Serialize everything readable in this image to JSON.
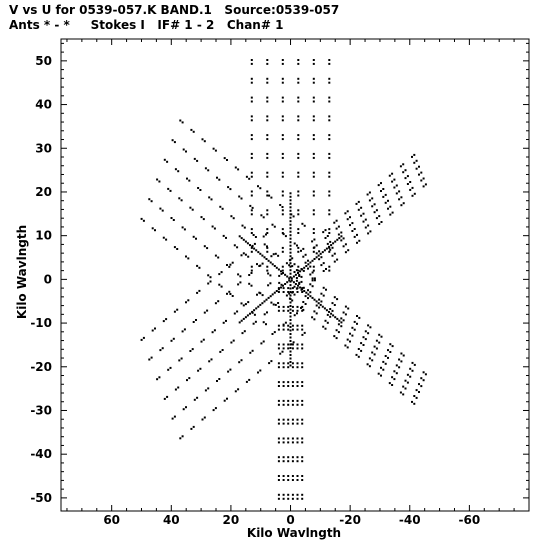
{
  "chart_data": {
    "type": "scatter",
    "title_line1": "V vs U for 0539-057.K BAND.1   Source:0539-057",
    "title_line2": "Ants * - *     Stokes I   IF# 1 - 2   Chan# 1",
    "xlabel": "Kilo Wavlngth",
    "ylabel": "Kilo Wavlngth",
    "xlim": [
      77,
      -80
    ],
    "ylim": [
      -53,
      55
    ],
    "x_reversed": true,
    "xticks": [
      60,
      40,
      20,
      0,
      -20,
      -40,
      -60
    ],
    "yticks": [
      50,
      40,
      30,
      20,
      10,
      0,
      -10,
      -20,
      -30,
      -40,
      -50
    ],
    "grid": false,
    "marker_color": "#000000",
    "pattern": {
      "description_units": "kilo-wavelength",
      "arms_deg": [
        90,
        30,
        -30
      ],
      "radial_spacing": 4.3,
      "max_radius": 51,
      "tracks_per_arm": 6,
      "track_offset_spacing": 5.2
    }
  }
}
